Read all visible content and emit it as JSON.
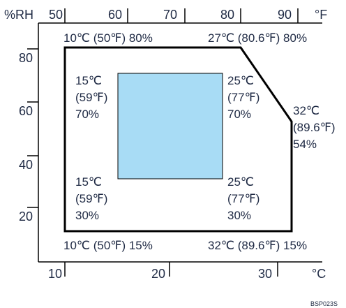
{
  "axes": {
    "rh_unit": "%RH",
    "f_unit": "°F",
    "c_unit": "°C",
    "f_ticks": [
      "50",
      "60",
      "70",
      "80",
      "90"
    ],
    "rh_ticks": [
      "80",
      "60",
      "40",
      "20"
    ],
    "c_ticks": [
      "10",
      "20",
      "30"
    ]
  },
  "outer_region": {
    "top_left": "10℃ (50℉) 80%",
    "top_right": "27℃ (80.6℉) 80%",
    "right": [
      "32℃",
      "(89.6℉)",
      "54%"
    ],
    "bottom_left": "10℃ (50℉) 15%",
    "bottom_right": "32℃ (89.6℉) 15%"
  },
  "inner_region": {
    "top_left": [
      "15℃",
      "(59℉)",
      "70%"
    ],
    "top_right": [
      "25℃",
      "(77℉)",
      "70%"
    ],
    "bottom_left": [
      "15℃",
      "(59℉)",
      "30%"
    ],
    "bottom_right": [
      "25℃",
      "(77℉)",
      "30%"
    ]
  },
  "figure_code": "BSP023S",
  "colors": {
    "frame": "#000000",
    "fill": "#a8dcf5",
    "text": "#1f2a44"
  }
}
